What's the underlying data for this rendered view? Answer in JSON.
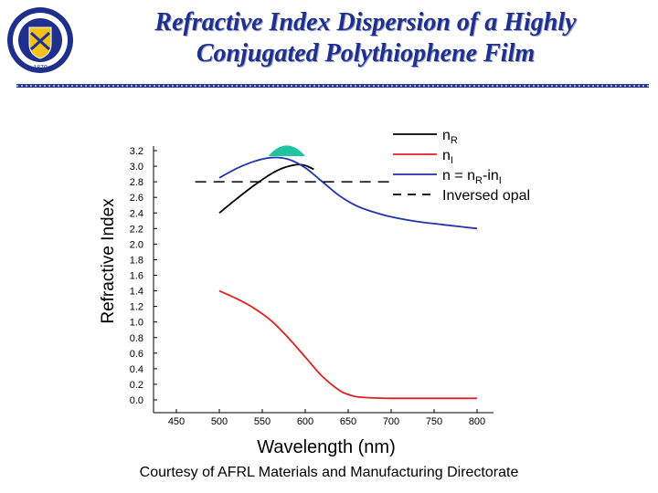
{
  "slide": {
    "title_line1": "Refractive Index Dispersion of a Highly",
    "title_line2": "Conjugated Polythiophene Film",
    "credit": "Courtesy of AFRL Materials and Manufacturing Directorate",
    "logo": {
      "text_top": "THE UNIVERSITY OF AKRON",
      "year": "1870"
    }
  },
  "colors": {
    "title": "#1e2f8c",
    "divider": "#2b3a8f",
    "n_real": "#000000",
    "n_imag": "#e02020",
    "n_complex": "#2233aa",
    "opal": "#000000",
    "band": "#20c4a0"
  },
  "chart_data": {
    "type": "line",
    "xlabel": "Wavelength (nm)",
    "ylabel": "Refractive Index",
    "xlim": [
      450,
      800
    ],
    "ylim": [
      0.0,
      3.2
    ],
    "xticks": [
      "450",
      "500",
      "550",
      "600",
      "650",
      "700",
      "750",
      "800"
    ],
    "yticks": [
      "0.0",
      "0.2",
      "0.4",
      "0.6",
      "0.8",
      "1.0",
      "1.2",
      "1.4",
      "1.6",
      "1.8",
      "2.0",
      "2.2",
      "2.4",
      "2.6",
      "2.8",
      "3.0",
      "3.2"
    ],
    "legend_position": "top-right",
    "series": [
      {
        "key": "nR",
        "legend": {
          "base": "n",
          "sub": "R",
          "rest": ""
        },
        "style": "solid",
        "x": [
          500,
          520,
          540,
          560,
          575,
          590,
          600,
          610
        ],
        "y": [
          2.4,
          2.58,
          2.75,
          2.9,
          2.98,
          3.02,
          3.01,
          2.96
        ]
      },
      {
        "key": "nI",
        "legend": {
          "base": "n",
          "sub": "I",
          "rest": ""
        },
        "style": "solid",
        "x": [
          500,
          520,
          540,
          560,
          580,
          600,
          620,
          640,
          650,
          660,
          680,
          700,
          750,
          800
        ],
        "y": [
          1.4,
          1.3,
          1.18,
          1.02,
          0.8,
          0.55,
          0.3,
          0.12,
          0.07,
          0.04,
          0.025,
          0.02,
          0.02,
          0.02
        ]
      },
      {
        "key": "n",
        "legend": {
          "base": "n = n",
          "sub": "R",
          "rest": "-in",
          "sub2": "I"
        },
        "style": "solid",
        "x": [
          500,
          520,
          540,
          560,
          580,
          600,
          620,
          640,
          660,
          680,
          700,
          730,
          760,
          800
        ],
        "y": [
          2.85,
          2.97,
          3.06,
          3.11,
          3.09,
          2.98,
          2.8,
          2.62,
          2.49,
          2.41,
          2.35,
          2.29,
          2.25,
          2.2
        ]
      },
      {
        "key": "opal",
        "legend": {
          "base": "Inversed opal",
          "sub": "",
          "rest": ""
        },
        "style": "dashed",
        "x": [
          472,
          700
        ],
        "y": [
          2.8,
          2.8
        ]
      }
    ],
    "band": {
      "x": [
        557,
        600
      ],
      "y_base": 3.13,
      "y_peak": 3.3
    }
  }
}
